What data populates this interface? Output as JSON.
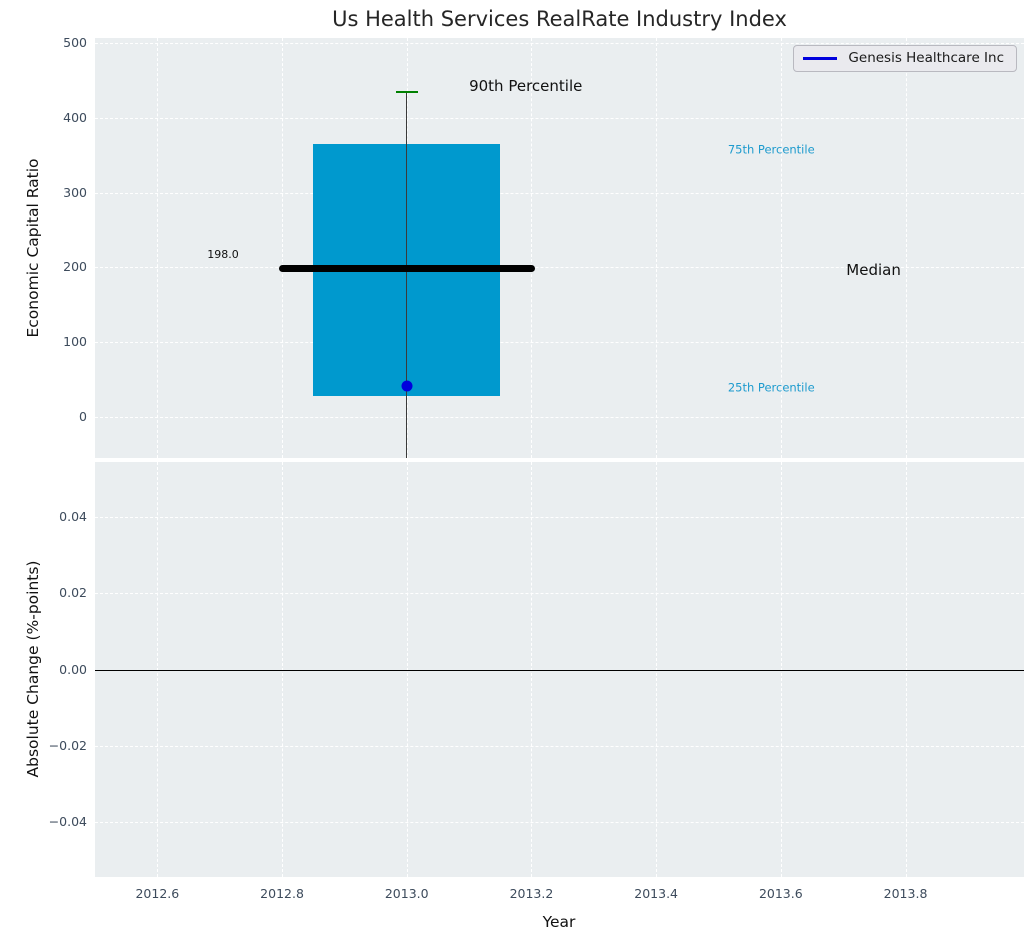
{
  "title": "Us Health Services RealRate Industry Index",
  "legend": {
    "label": "Genesis Healthcare Inc",
    "color": "#0000dd"
  },
  "colors": {
    "figure_background": "#ffffff",
    "axes_background": "#eaeef0",
    "grid": "#ffffff",
    "box_fill": "#0099ce",
    "median_line": "#000000",
    "whisker": "#3a3a3a",
    "p90_cap": "#008000",
    "point": "#0000dd",
    "zero_line": "#000000",
    "tick_label": "#3d4b5c",
    "percentile_label": "#1e9bce",
    "annotation_dark": "#111111"
  },
  "chart_data": [
    {
      "type": "box",
      "panel": "top",
      "ylabel": "Economic Capital Ratio",
      "xlim": [
        2012.5,
        2013.99
      ],
      "ylim": [
        -55,
        507
      ],
      "yticks": [
        500,
        400,
        300,
        200,
        100,
        0
      ],
      "ytick_labels": [
        "500",
        "400",
        "300",
        "200",
        "100",
        "0"
      ],
      "xticks": [
        2012.6,
        2012.8,
        2013.0,
        2013.2,
        2013.4,
        2013.6,
        2013.8
      ],
      "grid": true,
      "legend_position": "upper right",
      "box": {
        "x": 2013.0,
        "median": 198.0,
        "q25": 28,
        "q75": 365,
        "p90": 435,
        "whisker_low_clipped": true,
        "box_halfwidth": 0.15,
        "median_halfwidth": 0.205,
        "cap_halfwidth": 0.018
      },
      "point": {
        "series": "Genesis Healthcare Inc",
        "x": 2013.0,
        "y": 42
      },
      "annotations": [
        {
          "text": "198.0",
          "x": 2012.68,
          "y": 217,
          "size": 11,
          "color": "#111111"
        },
        {
          "text": "90th Percentile",
          "x": 2013.1,
          "y": 443,
          "size": 15,
          "color": "#111111"
        },
        {
          "text": "75th Percentile",
          "x": 2013.515,
          "y": 357,
          "size": 11.5,
          "color": "#1e9bce"
        },
        {
          "text": "Median",
          "x": 2013.705,
          "y": 197,
          "size": 15,
          "color": "#111111"
        },
        {
          "text": "25th Percentile",
          "x": 2013.515,
          "y": 39,
          "size": 11.5,
          "color": "#1e9bce"
        }
      ]
    },
    {
      "type": "line",
      "panel": "bottom",
      "ylabel": "Absolute Change (%-points)",
      "xlabel": "Year",
      "xlim": [
        2012.5,
        2013.99
      ],
      "ylim": [
        -0.0546,
        0.0546
      ],
      "yticks": [
        0.04,
        0.02,
        0.0,
        -0.02,
        -0.04
      ],
      "ytick_labels": [
        "0.04",
        "0.02",
        "0.00",
        "−0.02",
        "−0.04"
      ],
      "xticks": [
        2012.6,
        2012.8,
        2013.0,
        2013.2,
        2013.4,
        2013.6,
        2013.8
      ],
      "xtick_labels": [
        "2012.6",
        "2012.8",
        "2013.0",
        "2013.2",
        "2013.4",
        "2013.6",
        "2013.8"
      ],
      "grid": true,
      "zero_line": 0.0,
      "series": []
    }
  ]
}
